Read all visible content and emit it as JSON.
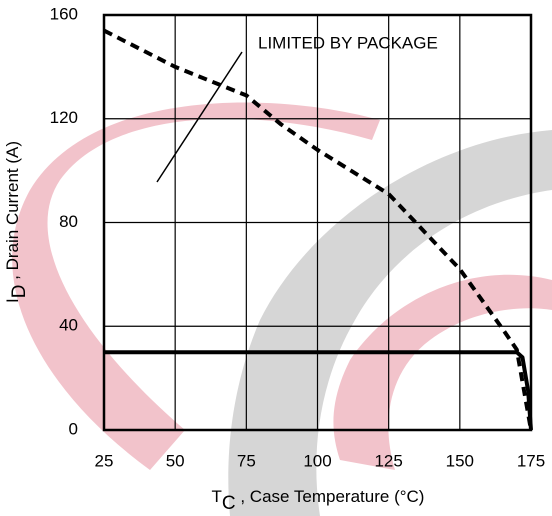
{
  "chart_data": {
    "type": "line",
    "x_label": {
      "main": "T",
      "sub": "C",
      "rest": " , Case Temperature (°C)"
    },
    "y_label": {
      "main": "I",
      "sub": "D",
      "rest": " , Drain Current (A)"
    },
    "annotation": "LIMITED BY PACKAGE",
    "xlim": [
      25,
      175
    ],
    "xticks": [
      25,
      50,
      75,
      100,
      125,
      150,
      175
    ],
    "ylim": [
      0,
      160
    ],
    "yticks": [
      0,
      40,
      80,
      120,
      160
    ],
    "grid": true,
    "series": [
      {
        "color": "#000000",
        "style": "dashed",
        "x": [
          25,
          50,
          75,
          87,
          100,
          125,
          150,
          165,
          170,
          175
        ],
        "values": [
          154,
          140,
          129,
          118,
          108,
          91,
          62,
          39,
          31,
          0
        ]
      },
      {
        "color": "#000000",
        "style": "solid",
        "x": [
          25,
          170,
          172,
          174,
          175
        ],
        "values": [
          30,
          30,
          28,
          15,
          0
        ]
      }
    ]
  }
}
